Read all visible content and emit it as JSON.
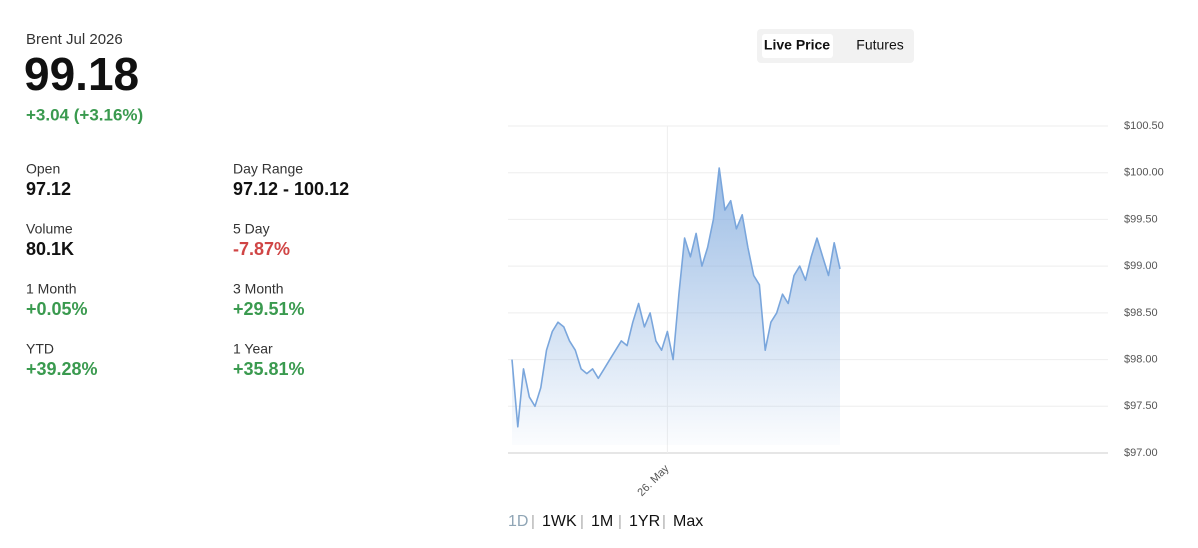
{
  "header": {
    "instrument": "Brent Jul 2026",
    "price": "99.18",
    "change": "+3.04 (+3.16%)"
  },
  "stats": [
    {
      "label": "Open",
      "value": "97.12"
    },
    {
      "label": "Day Range",
      "value": "97.12 - 100.12"
    },
    {
      "label": "Volume",
      "value": "80.1K"
    },
    {
      "label": "5 Day",
      "value": "-7.87%"
    },
    {
      "label": "1 Month",
      "value": "+0.05%"
    },
    {
      "label": "3 Month",
      "value": "+29.51%"
    },
    {
      "label": "YTD",
      "value": "+39.28%"
    },
    {
      "label": "1 Year",
      "value": "+35.81%"
    }
  ],
  "tabs": [
    "Live Price",
    "Futures"
  ],
  "ranges": [
    "1D",
    "1WK",
    "1M",
    "1YR",
    "Max"
  ],
  "chart_data": {
    "type": "area",
    "color": "#7aa6dc",
    "grid": true,
    "categories": [
      null,
      null,
      null,
      null,
      null,
      null,
      null,
      null,
      null,
      null,
      null,
      null,
      null,
      null,
      null,
      null,
      null,
      null,
      null,
      null,
      null,
      null,
      null,
      null,
      null,
      null,
      null,
      "26. May",
      null,
      null,
      null,
      null,
      null,
      null,
      null,
      null,
      null,
      null,
      null,
      null,
      null,
      null,
      null,
      null,
      null,
      null,
      null,
      null,
      null,
      null,
      null,
      null,
      null,
      null,
      null,
      null,
      null,
      null
    ],
    "values": [
      98.0,
      97.28,
      97.9,
      97.6,
      97.5,
      97.7,
      98.1,
      98.3,
      98.4,
      98.35,
      98.2,
      98.1,
      97.9,
      97.85,
      97.9,
      97.8,
      97.9,
      98.0,
      98.1,
      98.2,
      98.15,
      98.4,
      98.6,
      98.35,
      98.5,
      98.2,
      98.1,
      98.3,
      98.0,
      98.7,
      99.3,
      99.1,
      99.35,
      99.0,
      99.2,
      99.5,
      100.05,
      99.6,
      99.7,
      99.4,
      99.55,
      99.2,
      98.9,
      98.8,
      98.1,
      98.4,
      98.5,
      98.7,
      98.6,
      98.9,
      99.0,
      98.85,
      99.1,
      99.3,
      99.1,
      98.9,
      99.25,
      98.97
    ],
    "ylim": [
      97,
      100.5
    ],
    "yticks": [
      {
        "value": 97,
        "label": "$97.00"
      },
      {
        "value": 97.5,
        "label": "$97.50"
      },
      {
        "value": 98,
        "label": "$98.00"
      },
      {
        "value": 98.5,
        "label": "$98.50"
      },
      {
        "value": 99,
        "label": "$99.00"
      },
      {
        "value": 99.5,
        "label": "$99.50"
      },
      {
        "value": 100,
        "label": "$100.00"
      },
      {
        "value": 100.5,
        "label": "$100.50"
      }
    ]
  }
}
